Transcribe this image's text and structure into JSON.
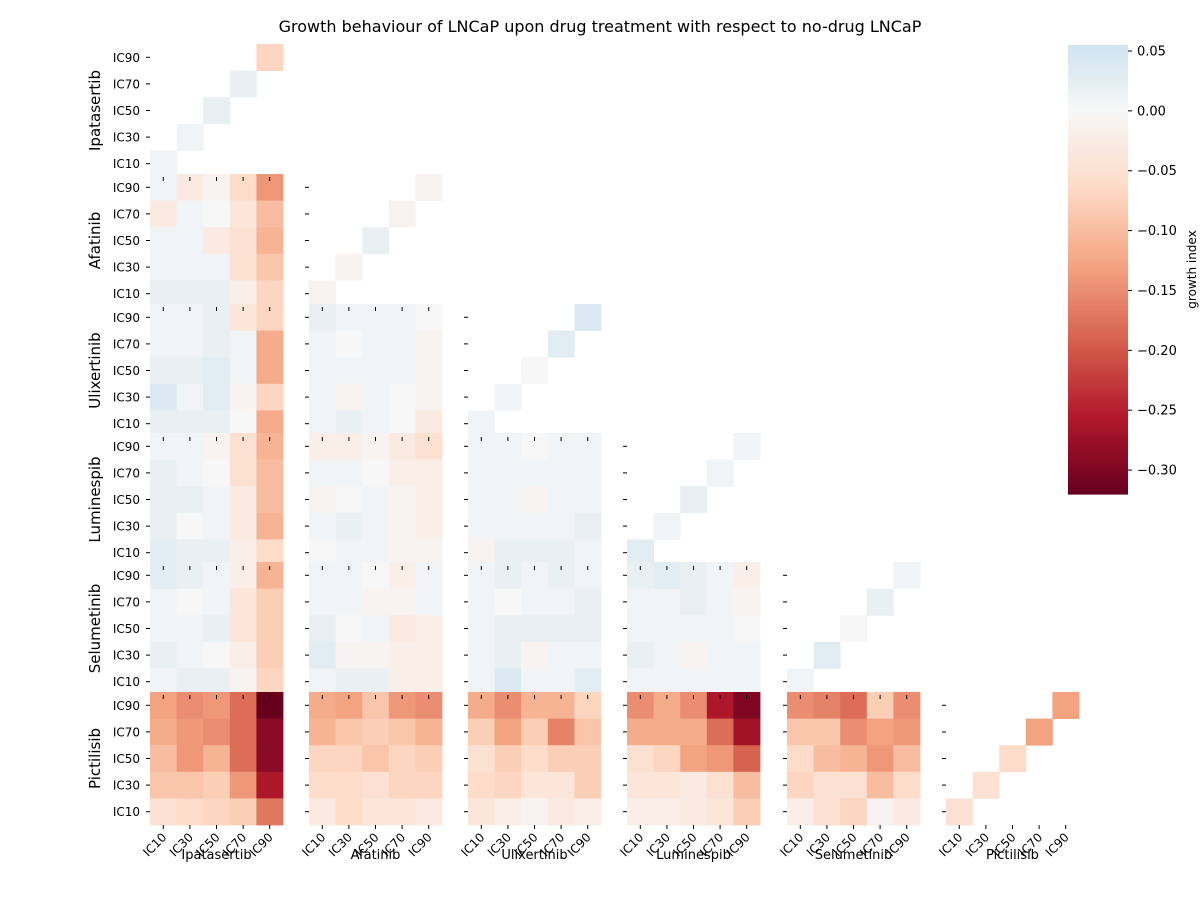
{
  "chart_data": {
    "type": "heatmap",
    "title": "Growth behaviour of LNCaP upon drug treatment with respect to no-drug LNCaP",
    "drugs": [
      "Ipatasertib",
      "Afatinib",
      "Ulixertinib",
      "Luminespib",
      "Selumetinib",
      "Pictilisib"
    ],
    "levels": [
      "IC10",
      "IC30",
      "IC50",
      "IC70",
      "IC90"
    ],
    "row_levels_top_to_bottom": [
      "IC90",
      "IC70",
      "IC50",
      "IC30",
      "IC10"
    ],
    "colorbar": {
      "label": "growth index",
      "min": -0.32,
      "max": 0.055,
      "ticks": [
        0.05,
        0.0,
        -0.05,
        -0.1,
        -0.15,
        -0.2,
        -0.25,
        -0.3
      ],
      "tick_labels": [
        "0.05",
        "0.00",
        "−0.05",
        "−0.10",
        "−0.15",
        "−0.20",
        "−0.25",
        "−0.30"
      ],
      "colormap": "RdBu"
    },
    "diagonal_single_drug": {
      "Ipatasertib": [
        0.01,
        0.01,
        0.02,
        0.02,
        -0.07
      ],
      "Afatinib": [
        -0.01,
        -0.01,
        0.02,
        -0.01,
        -0.01
      ],
      "Ulixertinib": [
        0.01,
        0.01,
        0.0,
        0.03,
        0.04
      ],
      "Luminespib": [
        0.03,
        0.01,
        0.02,
        0.01,
        0.01
      ],
      "Selumetinib": [
        0.01,
        0.03,
        0.0,
        0.02,
        0.01
      ],
      "Pictilisib": [
        -0.05,
        -0.05,
        -0.06,
        -0.13,
        -0.13
      ]
    },
    "combination_blocks": [
      {
        "row_drug": "Afatinib",
        "col_drug": "Ipatasertib",
        "values": [
          [
            0.01,
            -0.03,
            -0.01,
            -0.06,
            -0.14
          ],
          [
            -0.03,
            0.01,
            0.0,
            -0.04,
            -0.1
          ],
          [
            0.01,
            0.01,
            -0.03,
            -0.05,
            -0.11
          ],
          [
            0.01,
            0.01,
            0.01,
            -0.05,
            -0.09
          ],
          [
            0.02,
            0.02,
            0.02,
            -0.02,
            -0.07
          ]
        ]
      },
      {
        "row_drug": "Ulixertinib",
        "col_drug": "Ipatasertib",
        "values": [
          [
            0.01,
            0.01,
            0.02,
            -0.04,
            -0.07
          ],
          [
            0.01,
            0.01,
            0.02,
            0.01,
            -0.12
          ],
          [
            0.02,
            0.02,
            0.03,
            0.01,
            -0.12
          ],
          [
            0.04,
            0.01,
            0.03,
            -0.01,
            -0.07
          ],
          [
            0.02,
            0.02,
            0.02,
            0.0,
            -0.12
          ]
        ]
      },
      {
        "row_drug": "Ulixertinib",
        "col_drug": "Afatinib",
        "values": [
          [
            0.02,
            0.01,
            0.01,
            0.01,
            0.0
          ],
          [
            0.01,
            0.0,
            0.01,
            0.01,
            -0.01
          ],
          [
            0.01,
            0.01,
            0.01,
            0.01,
            -0.01
          ],
          [
            0.01,
            -0.01,
            0.01,
            0.0,
            -0.01
          ],
          [
            0.01,
            0.02,
            0.01,
            0.0,
            -0.03
          ]
        ]
      },
      {
        "row_drug": "Luminespib",
        "col_drug": "Ipatasertib",
        "values": [
          [
            0.01,
            0.01,
            -0.01,
            -0.05,
            -0.11
          ],
          [
            0.02,
            0.01,
            0.0,
            -0.05,
            -0.1
          ],
          [
            0.02,
            0.02,
            0.01,
            -0.03,
            -0.1
          ],
          [
            0.02,
            0.0,
            0.01,
            -0.03,
            -0.11
          ],
          [
            0.03,
            0.02,
            0.02,
            -0.02,
            -0.06
          ]
        ]
      },
      {
        "row_drug": "Luminespib",
        "col_drug": "Afatinib",
        "values": [
          [
            -0.02,
            -0.02,
            -0.01,
            -0.03,
            -0.05
          ],
          [
            0.01,
            0.01,
            0.0,
            -0.02,
            -0.02
          ],
          [
            -0.01,
            0.0,
            0.01,
            -0.01,
            -0.02
          ],
          [
            0.01,
            0.02,
            0.01,
            -0.01,
            -0.02
          ],
          [
            0.0,
            0.01,
            0.01,
            -0.01,
            -0.01
          ]
        ]
      },
      {
        "row_drug": "Luminespib",
        "col_drug": "Ulixertinib",
        "values": [
          [
            0.01,
            0.01,
            0.0,
            0.01,
            0.01
          ],
          [
            0.01,
            0.01,
            0.01,
            0.01,
            0.01
          ],
          [
            0.01,
            0.01,
            -0.01,
            0.01,
            0.01
          ],
          [
            0.01,
            0.01,
            0.01,
            0.01,
            0.02
          ],
          [
            -0.01,
            0.02,
            0.02,
            0.02,
            0.01
          ]
        ]
      },
      {
        "row_drug": "Selumetinib",
        "col_drug": "Ipatasertib",
        "values": [
          [
            0.03,
            0.02,
            0.01,
            -0.02,
            -0.11
          ],
          [
            0.01,
            0.0,
            0.01,
            -0.04,
            -0.08
          ],
          [
            0.01,
            0.01,
            0.02,
            -0.04,
            -0.08
          ],
          [
            0.02,
            0.01,
            0.0,
            -0.02,
            -0.08
          ],
          [
            0.01,
            0.02,
            0.02,
            -0.01,
            -0.07
          ]
        ]
      },
      {
        "row_drug": "Selumetinib",
        "col_drug": "Afatinib",
        "values": [
          [
            0.01,
            0.01,
            0.0,
            -0.02,
            0.01
          ],
          [
            0.01,
            0.01,
            -0.01,
            -0.01,
            0.01
          ],
          [
            0.02,
            0.0,
            0.01,
            -0.03,
            -0.02
          ],
          [
            0.03,
            -0.01,
            -0.01,
            -0.02,
            -0.02
          ],
          [
            0.01,
            0.02,
            0.02,
            -0.02,
            -0.02
          ]
        ]
      },
      {
        "row_drug": "Selumetinib",
        "col_drug": "Ulixertinib",
        "values": [
          [
            0.01,
            0.02,
            0.01,
            0.02,
            0.01
          ],
          [
            0.01,
            0.0,
            0.01,
            0.01,
            0.02
          ],
          [
            0.01,
            0.02,
            0.02,
            0.02,
            0.02
          ],
          [
            0.01,
            0.02,
            -0.01,
            0.01,
            0.01
          ],
          [
            0.01,
            0.04,
            0.01,
            0.01,
            0.03
          ]
        ]
      },
      {
        "row_drug": "Selumetinib",
        "col_drug": "Luminespib",
        "values": [
          [
            0.02,
            0.03,
            0.02,
            0.01,
            -0.02
          ],
          [
            0.01,
            0.01,
            0.02,
            0.01,
            -0.01
          ],
          [
            0.01,
            0.01,
            0.01,
            0.01,
            0.0
          ],
          [
            0.02,
            0.01,
            -0.01,
            0.01,
            0.01
          ],
          [
            0.01,
            0.01,
            0.01,
            0.01,
            0.01
          ]
        ]
      },
      {
        "row_drug": "Pictilisib",
        "col_drug": "Ipatasertib",
        "values": [
          [
            -0.13,
            -0.15,
            -0.14,
            -0.18,
            -0.32
          ],
          [
            -0.12,
            -0.14,
            -0.15,
            -0.18,
            -0.29
          ],
          [
            -0.1,
            -0.14,
            -0.11,
            -0.18,
            -0.29
          ],
          [
            -0.09,
            -0.09,
            -0.08,
            -0.14,
            -0.26
          ],
          [
            -0.05,
            -0.06,
            -0.07,
            -0.08,
            -0.17
          ]
        ]
      },
      {
        "row_drug": "Pictilisib",
        "col_drug": "Afatinib",
        "values": [
          [
            -0.12,
            -0.13,
            -0.09,
            -0.14,
            -0.15
          ],
          [
            -0.11,
            -0.09,
            -0.08,
            -0.09,
            -0.11
          ],
          [
            -0.07,
            -0.07,
            -0.09,
            -0.07,
            -0.08
          ],
          [
            -0.06,
            -0.06,
            -0.05,
            -0.07,
            -0.07
          ],
          [
            -0.03,
            -0.06,
            -0.04,
            -0.04,
            -0.03
          ]
        ]
      },
      {
        "row_drug": "Pictilisib",
        "col_drug": "Ulixertinib",
        "values": [
          [
            -0.12,
            -0.15,
            -0.11,
            -0.11,
            -0.07
          ],
          [
            -0.08,
            -0.13,
            -0.08,
            -0.16,
            -0.09
          ],
          [
            -0.05,
            -0.08,
            -0.06,
            -0.08,
            -0.08
          ],
          [
            -0.06,
            -0.07,
            -0.04,
            -0.04,
            -0.08
          ],
          [
            -0.04,
            -0.02,
            -0.01,
            -0.03,
            -0.02
          ]
        ]
      },
      {
        "row_drug": "Pictilisib",
        "col_drug": "Luminespib",
        "values": [
          [
            -0.15,
            -0.12,
            -0.15,
            -0.26,
            -0.3
          ],
          [
            -0.12,
            -0.12,
            -0.12,
            -0.18,
            -0.27
          ],
          [
            -0.05,
            -0.07,
            -0.13,
            -0.14,
            -0.19
          ],
          [
            -0.04,
            -0.04,
            -0.03,
            -0.05,
            -0.1
          ],
          [
            -0.02,
            -0.02,
            -0.03,
            -0.04,
            -0.08
          ]
        ]
      },
      {
        "row_drug": "Pictilisib",
        "col_drug": "Selumetinib",
        "values": [
          [
            -0.15,
            -0.16,
            -0.18,
            -0.08,
            -0.15
          ],
          [
            -0.09,
            -0.09,
            -0.15,
            -0.13,
            -0.14
          ],
          [
            -0.06,
            -0.1,
            -0.11,
            -0.14,
            -0.1
          ],
          [
            -0.07,
            -0.05,
            -0.05,
            -0.1,
            -0.06
          ],
          [
            -0.02,
            -0.05,
            -0.07,
            -0.01,
            -0.03
          ]
        ]
      }
    ]
  }
}
